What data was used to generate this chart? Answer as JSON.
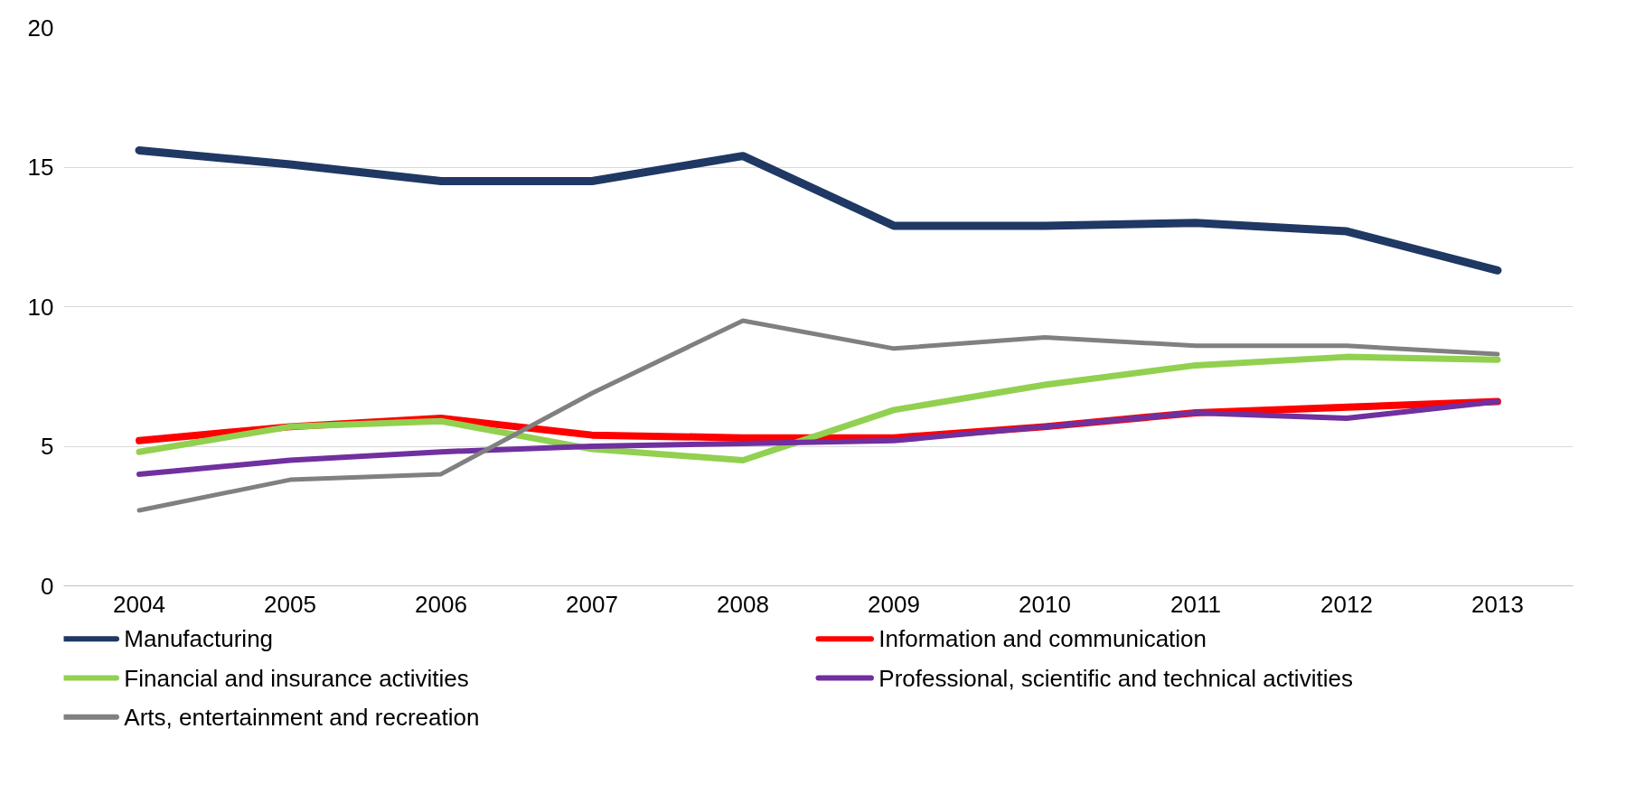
{
  "chart_data": {
    "type": "line",
    "categories": [
      "2004",
      "2005",
      "2006",
      "2007",
      "2008",
      "2009",
      "2010",
      "2011",
      "2012",
      "2013"
    ],
    "ylim": [
      0,
      20
    ],
    "yticks": [
      0,
      5,
      10,
      15,
      20
    ],
    "grid": "y",
    "legend": "bottom",
    "line_style": "solid",
    "series": [
      {
        "name": "Manufacturing",
        "color": "#1f3864",
        "values": [
          15.6,
          15.1,
          14.5,
          14.5,
          15.4,
          12.9,
          12.9,
          13.0,
          12.7,
          11.3
        ]
      },
      {
        "name": "Information and communication",
        "color": "#ff0000",
        "values": [
          5.2,
          5.7,
          6.0,
          5.4,
          5.3,
          5.3,
          5.7,
          6.2,
          6.4,
          6.6
        ]
      },
      {
        "name": "Financial and insurance activities",
        "color": "#92d050",
        "values": [
          4.8,
          5.7,
          5.9,
          4.9,
          4.5,
          6.3,
          7.2,
          7.9,
          8.2,
          8.1
        ]
      },
      {
        "name": "Professional, scientific and technical activities",
        "color": "#7030a0",
        "values": [
          4.0,
          4.5,
          4.8,
          5.0,
          5.1,
          5.2,
          5.7,
          6.2,
          6.0,
          6.6
        ]
      },
      {
        "name": "Arts, entertainment and recreation",
        "color": "#808080",
        "values": [
          2.7,
          3.8,
          4.0,
          6.9,
          9.5,
          8.5,
          8.9,
          8.6,
          8.6,
          8.3
        ]
      }
    ]
  }
}
